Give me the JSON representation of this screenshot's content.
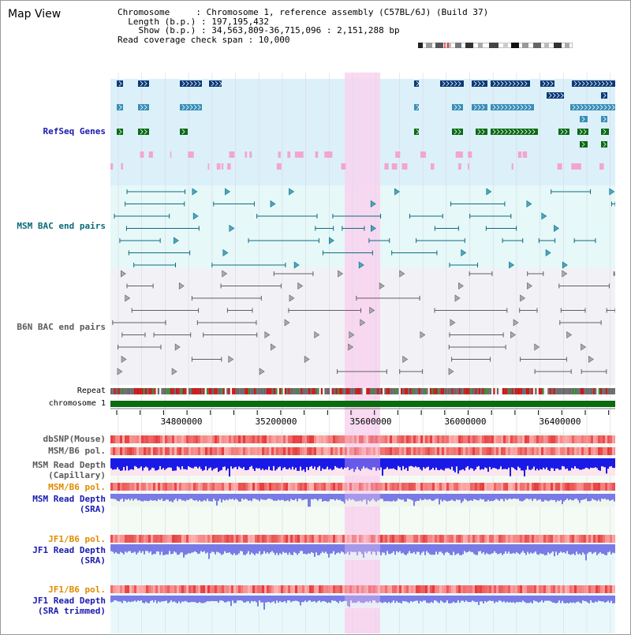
{
  "title": "Map View",
  "info": {
    "chromosome_line": "Chromosome     : Chromosome 1, reference assembly (C57BL/6J) (Build 37)",
    "length_line": "  Length (b.p.) : 197,195,432",
    "show_line": "    Show (b.p.) : 34,563,809-36,715,096 : 2,151,288 bp",
    "coverage_line": "Read coverage check span : 10,000"
  },
  "labels": {
    "refseq": "RefSeq Genes",
    "msm_bac": "MSM BAC end pairs",
    "b6n_bac": "B6N BAC end pairs",
    "repeat": "Repeat",
    "chromosome": "chromosome 1",
    "dbsnp": "dbSNP(Mouse)",
    "msm_b6_pol_1": "MSM/B6 pol.",
    "msm_depth_cap_1": "MSM Read Depth",
    "msm_depth_cap_2": "(Capillary)",
    "msm_b6_pol_2": "MSM/B6 pol.",
    "msm_depth_sra_1": "MSM Read Depth",
    "msm_depth_sra_2": "(SRA)",
    "jf1_b6_pol_1": "JF1/B6 pol.",
    "jf1_depth_sra_1": "JF1 Read Depth",
    "jf1_depth_sra_2": "(SRA)",
    "jf1_b6_pol_2": "JF1/B6 pol.",
    "jf1_depth_trim_1": "JF1 Read Depth",
    "jf1_depth_trim_2": "(SRA trimmed)"
  },
  "axis": {
    "ticks": [
      "34800000",
      "35200000",
      "35600000",
      "36000000",
      "36400000"
    ]
  },
  "colors": {
    "highlight": "#f8d3ef",
    "refseq_bg": "#dcf0fa",
    "msm_bg": "#e6f8f8",
    "b6n_bg": "#f2f2f6",
    "refseq_dark": "#0b3a78",
    "refseq_mid": "#3a8fb8",
    "refseq_green": "#0a6b14",
    "chromosome_bar": "#0a6b10",
    "depth_blue": "#1a1ae6",
    "depth_periwinkle": "#7a7ae6"
  }
}
